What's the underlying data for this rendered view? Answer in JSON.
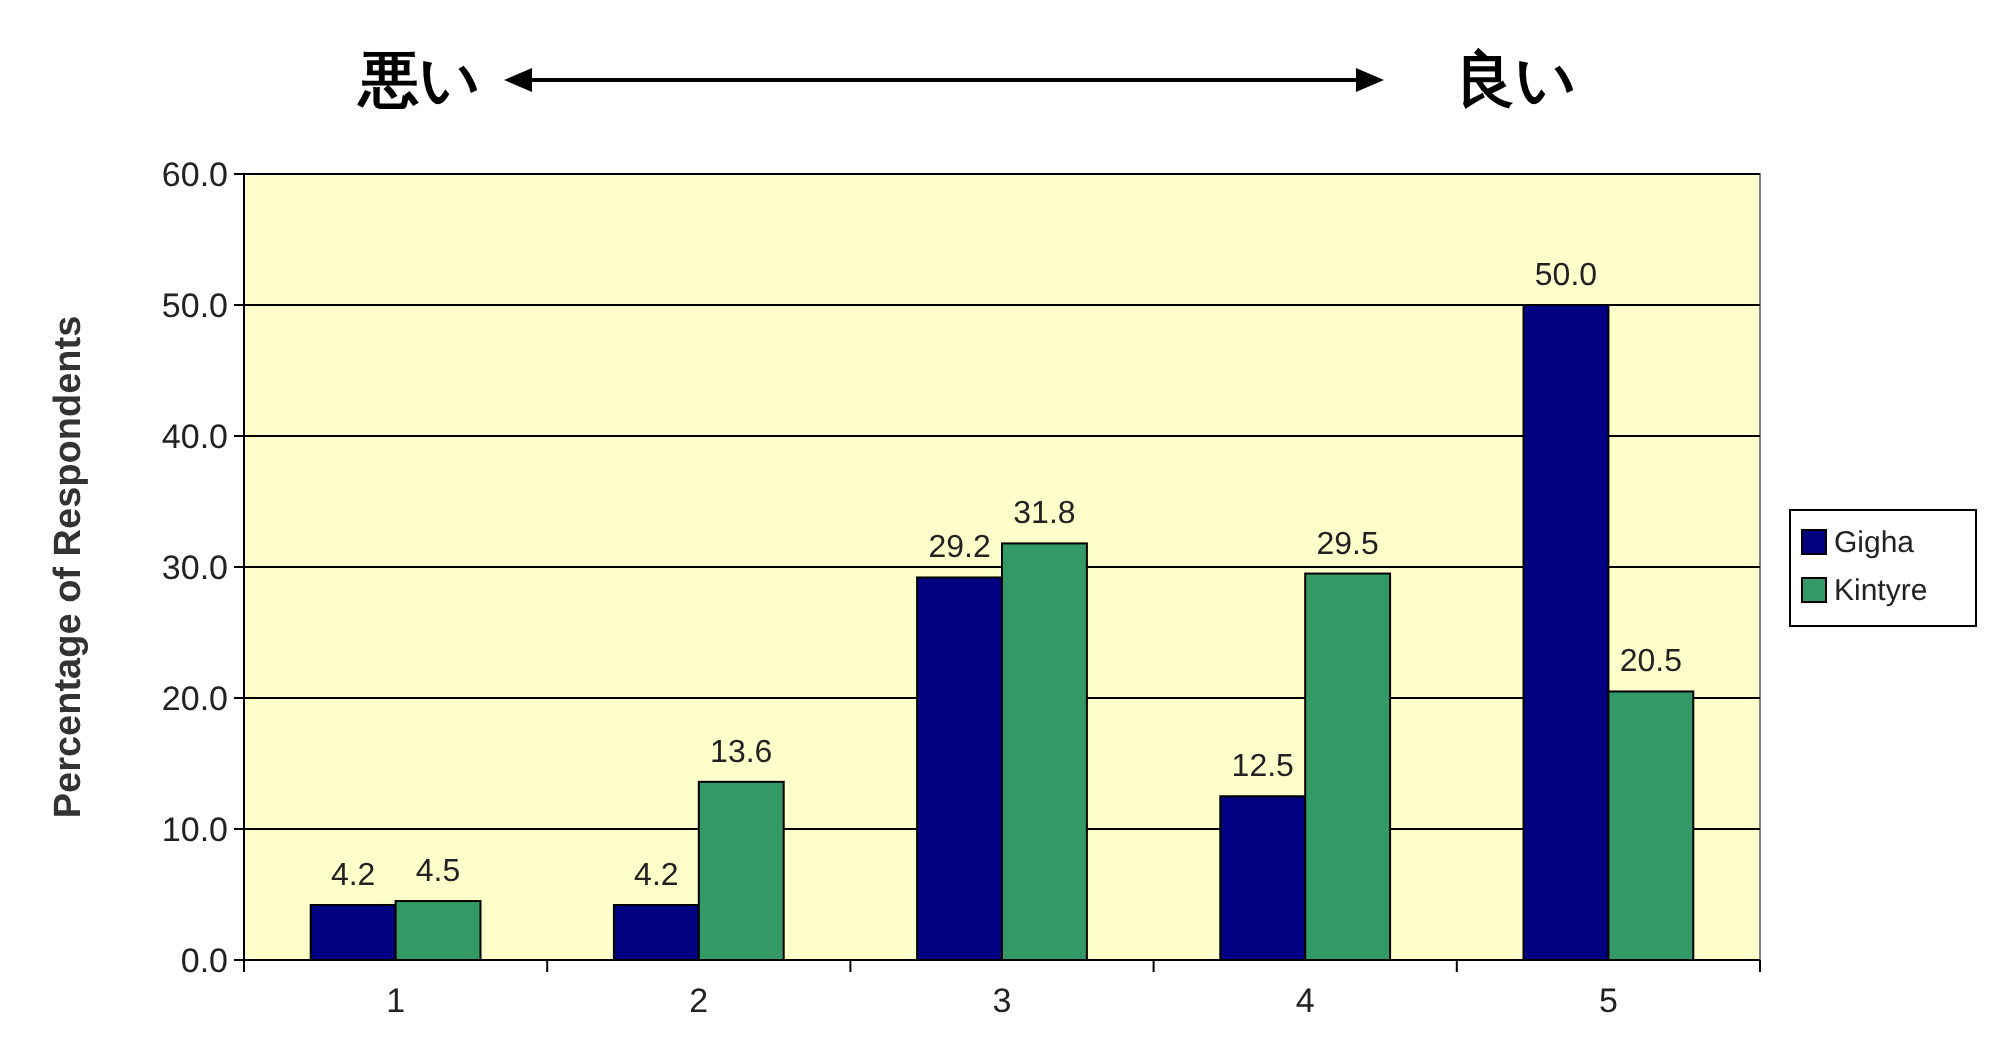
{
  "chart_data": {
    "type": "bar",
    "ylabel": "Percentage of Respondents",
    "annotations": [
      "悪い",
      "良い"
    ],
    "categories": [
      "1",
      "2",
      "3",
      "4",
      "5"
    ],
    "series": [
      {
        "name": "Gigha",
        "color": "#000080",
        "values": [
          4.2,
          4.2,
          29.2,
          12.5,
          50.0
        ],
        "value_labels": [
          "4.2",
          "4.2",
          "29.2",
          "12.5",
          "50.0"
        ]
      },
      {
        "name": "Kintyre",
        "color": "#339966",
        "values": [
          4.5,
          13.6,
          31.8,
          29.5,
          20.5
        ],
        "value_labels": [
          "4.5",
          "13.6",
          "31.8",
          "29.5",
          "20.5"
        ]
      }
    ],
    "ylim": [
      0,
      60
    ],
    "yticks": [
      {
        "value": 0,
        "label": "0.0"
      },
      {
        "value": 10,
        "label": "10.0"
      },
      {
        "value": 20,
        "label": "20.0"
      },
      {
        "value": 30,
        "label": "30.0"
      },
      {
        "value": 40,
        "label": "40.0"
      },
      {
        "value": 50,
        "label": "50.0"
      },
      {
        "value": 60,
        "label": "60.0"
      }
    ],
    "grid": "y",
    "legend": "right"
  }
}
